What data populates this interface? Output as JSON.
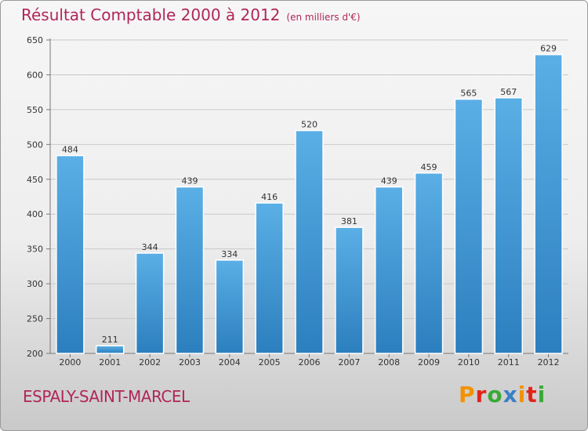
{
  "title": "Résultat Comptable 2000 à 2012",
  "unit": "(en milliers d'€)",
  "commune": "ESPALY-SAINT-MARCEL",
  "logo": "Proxiti",
  "colors": {
    "title": "#b0265a",
    "bar_top": "#5aafe6",
    "bar_bottom": "#2c7fbe",
    "logo_letters": [
      "#f39200",
      "#e2231a",
      "#3aa935",
      "#3b7fc4",
      "#f39200",
      "#e2231a",
      "#3aa935"
    ]
  },
  "chart_data": {
    "type": "bar",
    "categories": [
      "2000",
      "2001",
      "2002",
      "2003",
      "2004",
      "2005",
      "2006",
      "2007",
      "2008",
      "2009",
      "2010",
      "2011",
      "2012"
    ],
    "values": [
      484,
      211,
      344,
      439,
      334,
      416,
      520,
      381,
      439,
      459,
      565,
      567,
      629
    ],
    "data_labels": [
      "484",
      "211",
      "344",
      "439",
      "334",
      "416",
      "520",
      "381",
      "439",
      "459",
      "565",
      "567",
      "629"
    ],
    "yticks": [
      "200",
      "250",
      "300",
      "350",
      "400",
      "450",
      "500",
      "550",
      "600",
      "650"
    ],
    "ylim": [
      200,
      650
    ],
    "xlabel": "",
    "ylabel": "",
    "grid": true
  }
}
